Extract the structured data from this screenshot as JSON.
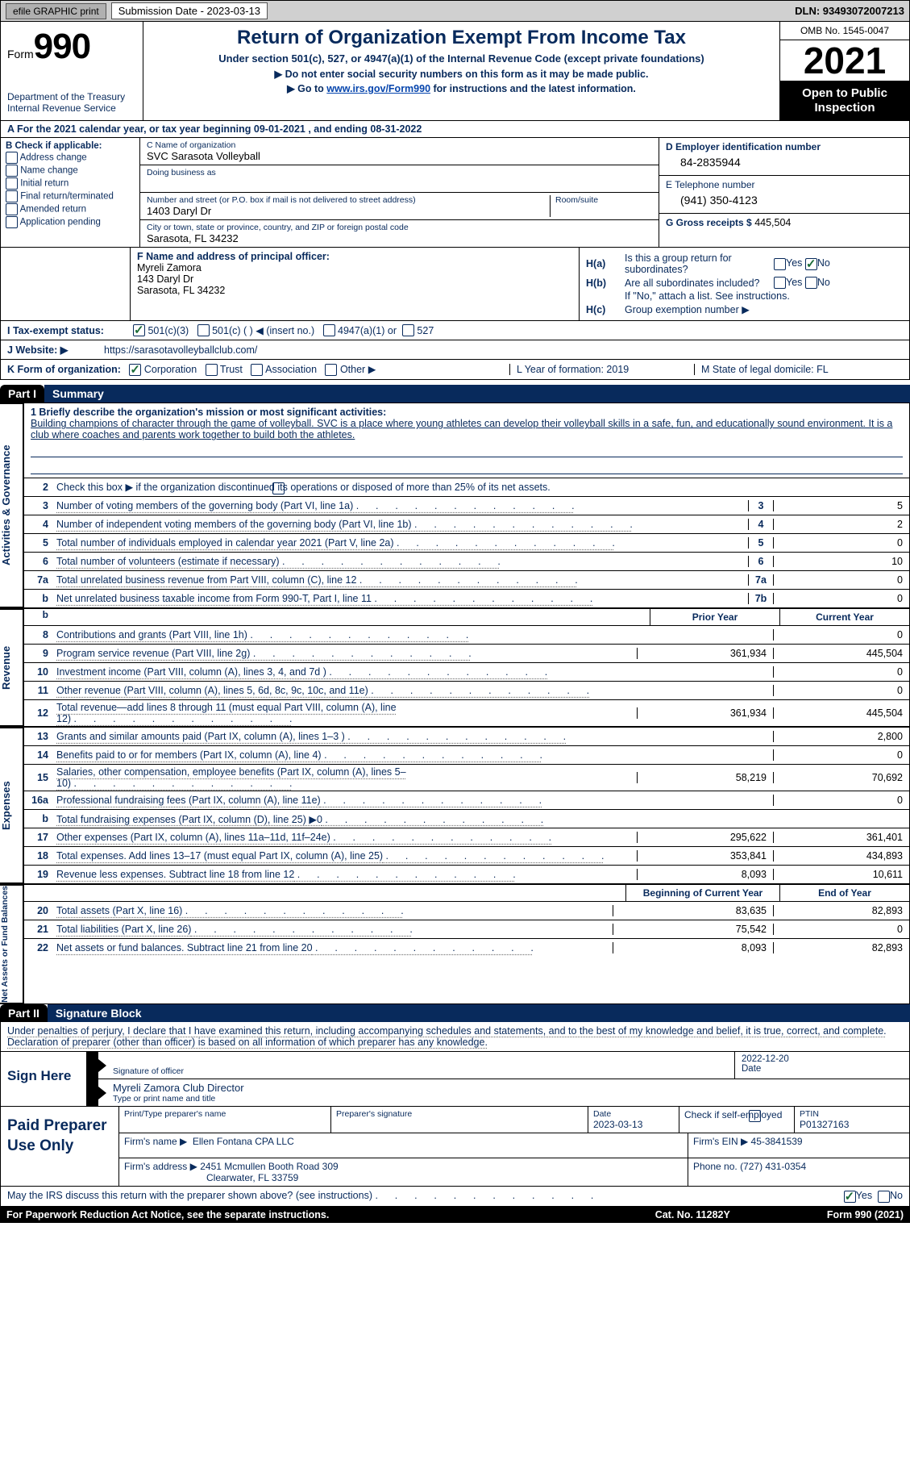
{
  "top": {
    "efile": "efile GRAPHIC print",
    "submission_label": "Submission Date - 2023-03-13",
    "dln_label": "DLN: 93493072007213"
  },
  "header": {
    "form_word": "Form",
    "form_num": "990",
    "dept": "Department of the Treasury\nInternal Revenue Service",
    "title": "Return of Organization Exempt From Income Tax",
    "subtitle": "Under section 501(c), 527, or 4947(a)(1) of the Internal Revenue Code (except private foundations)",
    "note1": "▶ Do not enter social security numbers on this form as it may be made public.",
    "note2_pre": "▶ Go to ",
    "note2_link": "www.irs.gov/Form990",
    "note2_post": " for instructions and the latest information.",
    "omb": "OMB No. 1545-0047",
    "year": "2021",
    "open": "Open to Public Inspection"
  },
  "rowA": "A  For the 2021 calendar year, or tax year beginning 09-01-2021   , and ending 08-31-2022",
  "B": {
    "title": "B Check if applicable:",
    "items": [
      "Address change",
      "Name change",
      "Initial return",
      "Final return/terminated",
      "Amended return",
      "Application pending"
    ]
  },
  "C": {
    "name_lbl": "C Name of organization",
    "name_val": "SVC Sarasota Volleyball",
    "dba_lbl": "Doing business as",
    "addr_lbl": "Number and street (or P.O. box if mail is not delivered to street address)",
    "addr_val": "1403 Daryl Dr",
    "room_lbl": "Room/suite",
    "city_lbl": "City or town, state or province, country, and ZIP or foreign postal code",
    "city_val": "Sarasota, FL  34232"
  },
  "D": {
    "ein_lbl": "D Employer identification number",
    "ein_val": "84-2835944",
    "tel_lbl": "E Telephone number",
    "tel_val": "(941) 350-4123",
    "gross_lbl": "G Gross receipts $",
    "gross_val": "445,504"
  },
  "F": {
    "lbl": "F  Name and address of principal officer:",
    "name": "Myreli Zamora",
    "addr": "143 Daryl Dr",
    "city": "Sarasota, FL  34232"
  },
  "H": {
    "a": "Is this a group return for subordinates?",
    "b": "Are all subordinates included?",
    "b_note": "If \"No,\" attach a list. See instructions.",
    "c": "Group exemption number ▶"
  },
  "I": {
    "lbl": "I     Tax-exempt status:",
    "opts": [
      "501(c)(3)",
      "501(c) (  ) ◀ (insert no.)",
      "4947(a)(1) or",
      "527"
    ]
  },
  "J": {
    "lbl": "J    Website: ▶",
    "val": "https://sarasotavolleyballclub.com/"
  },
  "K": {
    "lbl": "K Form of organization:",
    "opts": [
      "Corporation",
      "Trust",
      "Association",
      "Other ▶"
    ],
    "L": "L Year of formation: 2019",
    "M": "M State of legal domicile: FL"
  },
  "part1": {
    "tab": "Part I",
    "title": "Summary",
    "briefly_lbl": "1   Briefly describe the organization's mission or most significant activities:",
    "briefly_text": "Building champions of character through the game of volleyball. SVC is a place where young athletes can develop their volleyball skills in a safe, fun, and educationally sound environment. It is a club where coaches and parents work together to build both the athletes.",
    "line2": "Check this box ▶        if the organization discontinued its operations or disposed of more than 25% of its net assets.",
    "activities_label": "Activities & Governance",
    "revenue_label": "Revenue",
    "expenses_label": "Expenses",
    "netassets_label": "Net Assets or Fund Balances",
    "prior_year": "Prior Year",
    "current_year": "Current Year",
    "begin_year": "Beginning of Current Year",
    "end_year": "End of Year",
    "rows_act": [
      {
        "n": "3",
        "d": "Number of voting members of the governing body (Part VI, line 1a)",
        "c": "3",
        "v": "5"
      },
      {
        "n": "4",
        "d": "Number of independent voting members of the governing body (Part VI, line 1b)",
        "c": "4",
        "v": "2"
      },
      {
        "n": "5",
        "d": "Total number of individuals employed in calendar year 2021 (Part V, line 2a)",
        "c": "5",
        "v": "0"
      },
      {
        "n": "6",
        "d": "Total number of volunteers (estimate if necessary)",
        "c": "6",
        "v": "10"
      },
      {
        "n": "7a",
        "d": "Total unrelated business revenue from Part VIII, column (C), line 12",
        "c": "7a",
        "v": "0"
      },
      {
        "n": "b",
        "d": "Net unrelated business taxable income from Form 990-T, Part I, line 11",
        "c": "7b",
        "v": "0"
      }
    ],
    "rows_rev": [
      {
        "n": "8",
        "d": "Contributions and grants (Part VIII, line 1h)",
        "p": "",
        "c": "0"
      },
      {
        "n": "9",
        "d": "Program service revenue (Part VIII, line 2g)",
        "p": "361,934",
        "c": "445,504"
      },
      {
        "n": "10",
        "d": "Investment income (Part VIII, column (A), lines 3, 4, and 7d )",
        "p": "",
        "c": "0"
      },
      {
        "n": "11",
        "d": "Other revenue (Part VIII, column (A), lines 5, 6d, 8c, 9c, 10c, and 11e)",
        "p": "",
        "c": "0"
      },
      {
        "n": "12",
        "d": "Total revenue—add lines 8 through 11 (must equal Part VIII, column (A), line 12)",
        "p": "361,934",
        "c": "445,504"
      }
    ],
    "rows_exp": [
      {
        "n": "13",
        "d": "Grants and similar amounts paid (Part IX, column (A), lines 1–3 )",
        "p": "",
        "c": "2,800"
      },
      {
        "n": "14",
        "d": "Benefits paid to or for members (Part IX, column (A), line 4)",
        "p": "",
        "c": "0"
      },
      {
        "n": "15",
        "d": "Salaries, other compensation, employee benefits (Part IX, column (A), lines 5–10)",
        "p": "58,219",
        "c": "70,692"
      },
      {
        "n": "16a",
        "d": "Professional fundraising fees (Part IX, column (A), line 11e)",
        "p": "",
        "c": "0"
      },
      {
        "n": "b",
        "d": "Total fundraising expenses (Part IX, column (D), line 25) ▶0",
        "p": "shaded",
        "c": "shaded"
      },
      {
        "n": "17",
        "d": "Other expenses (Part IX, column (A), lines 11a–11d, 11f–24e)",
        "p": "295,622",
        "c": "361,401"
      },
      {
        "n": "18",
        "d": "Total expenses. Add lines 13–17 (must equal Part IX, column (A), line 25)",
        "p": "353,841",
        "c": "434,893"
      },
      {
        "n": "19",
        "d": "Revenue less expenses. Subtract line 18 from line 12",
        "p": "8,093",
        "c": "10,611"
      }
    ],
    "rows_net": [
      {
        "n": "20",
        "d": "Total assets (Part X, line 16)",
        "p": "83,635",
        "c": "82,893"
      },
      {
        "n": "21",
        "d": "Total liabilities (Part X, line 26)",
        "p": "75,542",
        "c": "0"
      },
      {
        "n": "22",
        "d": "Net assets or fund balances. Subtract line 21 from line 20",
        "p": "8,093",
        "c": "82,893"
      }
    ]
  },
  "part2": {
    "tab": "Part II",
    "title": "Signature Block",
    "decl": "Under penalties of perjury, I declare that I have examined this return, including accompanying schedules and statements, and to the best of my knowledge and belief, it is true, correct, and complete. Declaration of preparer (other than officer) is based on all information of which preparer has any knowledge.",
    "sign_here": "Sign Here",
    "sig_officer_lbl": "Signature of officer",
    "sig_date": "2022-12-20",
    "date_lbl": "Date",
    "sig_name": "Myreli Zamora  Club Director",
    "sig_name_lbl": "Type or print name and title",
    "paid_prep": "Paid Preparer Use Only",
    "p_name_lbl": "Print/Type preparer's name",
    "p_sig_lbl": "Preparer's signature",
    "p_date_lbl": "Date",
    "p_date": "2023-03-13",
    "p_check": "Check        if self-employed",
    "p_ptin_lbl": "PTIN",
    "p_ptin": "P01327163",
    "firm_name_lbl": "Firm's name     ▶",
    "firm_name": "Ellen Fontana CPA LLC",
    "firm_ein_lbl": "Firm's EIN ▶",
    "firm_ein": "45-3841539",
    "firm_addr_lbl": "Firm's address ▶",
    "firm_addr1": "2451 Mcmullen Booth Road 309",
    "firm_addr2": "Clearwater, FL  33759",
    "phone_lbl": "Phone no.",
    "phone": "(727) 431-0354"
  },
  "footer": {
    "may": "May the IRS discuss this return with the preparer shown above? (see instructions)",
    "paperwork": "For Paperwork Reduction Act Notice, see the separate instructions.",
    "cat": "Cat. No. 11282Y",
    "form": "Form 990 (2021)"
  }
}
